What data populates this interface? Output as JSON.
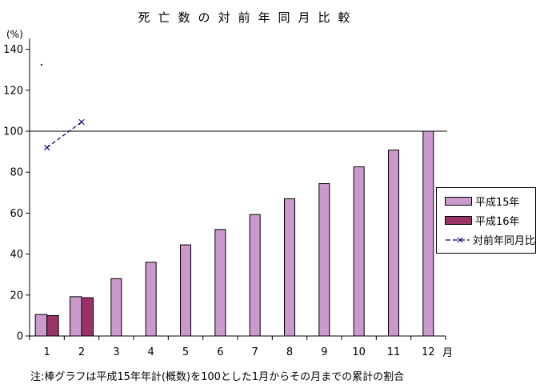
{
  "title": "死亡数の対前年同月比較",
  "y_axis_unit": "(%)",
  "x_axis_unit": "月",
  "note": "注:棒グラフは平成15年年計(概数)を100とした1月からその月までの累計の割合",
  "legend": {
    "items": [
      {
        "label": "平成15年",
        "color": "#CC99CC",
        "type": "bar"
      },
      {
        "label": "平成16年",
        "color": "#993366",
        "type": "bar"
      },
      {
        "label": "対前年同月比",
        "color": "#000080",
        "type": "line"
      }
    ]
  },
  "chart_data": {
    "type": "bar",
    "title": "死亡数の対前年同月比較",
    "xlabel": "月",
    "ylabel": "(%)",
    "categories": [
      "1",
      "2",
      "3",
      "4",
      "5",
      "6",
      "7",
      "8",
      "9",
      "10",
      "11",
      "12"
    ],
    "series": [
      {
        "name": "平成15年",
        "type": "bar",
        "color": "#CC99CC",
        "values": [
          10.5,
          19.2,
          28,
          36,
          44.5,
          52,
          59.3,
          67,
          74.4,
          82.6,
          90.8,
          100
        ]
      },
      {
        "name": "平成16年",
        "type": "bar",
        "color": "#993366",
        "values": [
          10,
          18.7,
          null,
          null,
          null,
          null,
          null,
          null,
          null,
          null,
          null,
          null
        ]
      },
      {
        "name": "対前年同月比",
        "type": "line",
        "color": "#000080",
        "marker": "x",
        "dashed": true,
        "values": [
          92,
          104.5,
          null,
          null,
          null,
          null,
          null,
          null,
          null,
          null,
          null,
          null
        ]
      }
    ],
    "ylim": [
      0,
      140
    ],
    "yticks": [
      0,
      20,
      40,
      60,
      80,
      100,
      120,
      140
    ],
    "reference_line": 100,
    "grid": "off",
    "legend_position": "right"
  }
}
